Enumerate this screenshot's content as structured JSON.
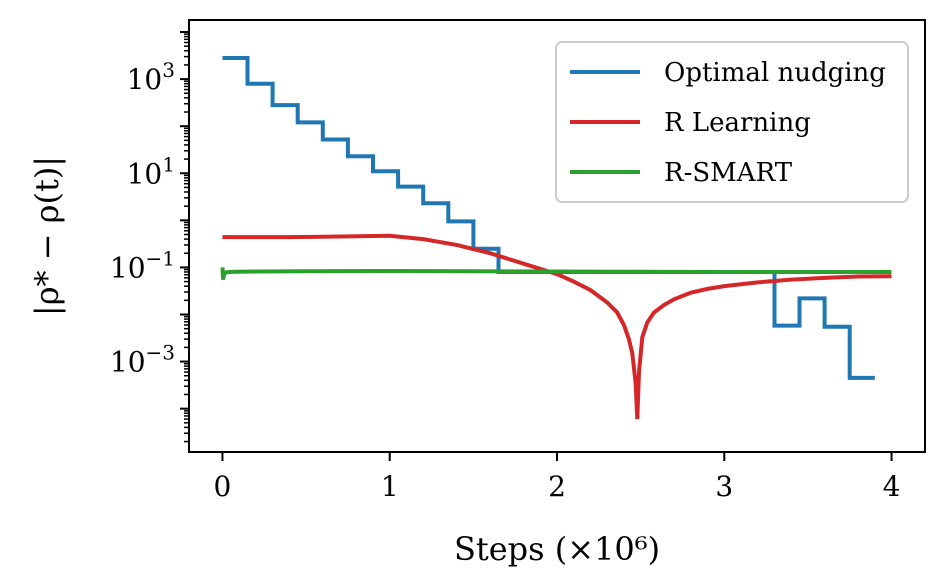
{
  "chart_data": {
    "type": "line",
    "title": "",
    "xlabel": "Steps (×10⁶)",
    "ylabel": "|ρ* − ρ(t)|",
    "xlim": [
      -0.2,
      4.2
    ],
    "ylim": [
      1.2e-05,
      18000
    ],
    "yscale": "log",
    "grid": false,
    "legend_position": "top-right",
    "x_ticks": [
      {
        "value": 0,
        "label": "0"
      },
      {
        "value": 1,
        "label": "1"
      },
      {
        "value": 2,
        "label": "2"
      },
      {
        "value": 3,
        "label": "3"
      },
      {
        "value": 4,
        "label": "4"
      }
    ],
    "y_ticks": [
      {
        "value": 1000,
        "base": "10",
        "exp": "3"
      },
      {
        "value": 10,
        "base": "10",
        "exp": "1"
      },
      {
        "value": 0.1,
        "base": "10",
        "exp": "−1"
      },
      {
        "value": 0.001,
        "base": "10",
        "exp": "−3"
      }
    ],
    "series": [
      {
        "name": "Optimal nudging",
        "color": "#1f77b4",
        "style": "step",
        "x": [
          0,
          0.15,
          0.15,
          0.3,
          0.3,
          0.45,
          0.45,
          0.6,
          0.6,
          0.75,
          0.75,
          0.9,
          0.9,
          1.05,
          1.05,
          1.2,
          1.2,
          1.35,
          1.35,
          1.5,
          1.5,
          1.65,
          1.65,
          3.3,
          3.3,
          3.45,
          3.45,
          3.6,
          3.6,
          3.75,
          3.75,
          3.9
        ],
        "y": [
          2800,
          2800,
          800,
          800,
          280,
          280,
          120,
          120,
          52,
          52,
          23,
          23,
          11,
          11,
          5.2,
          5.2,
          2.3,
          2.3,
          0.95,
          0.95,
          0.25,
          0.25,
          0.08,
          0.08,
          0.0058,
          0.0058,
          0.022,
          0.022,
          0.0055,
          0.0055,
          0.00045,
          0.00045
        ]
      },
      {
        "name": "R Learning",
        "color": "#d62728",
        "style": "line",
        "x": [
          0,
          0.2,
          0.4,
          0.6,
          0.8,
          1.0,
          1.2,
          1.4,
          1.6,
          1.8,
          2.0,
          2.1,
          2.2,
          2.3,
          2.36,
          2.4,
          2.43,
          2.45,
          2.47,
          2.48,
          2.49,
          2.51,
          2.54,
          2.58,
          2.64,
          2.7,
          2.8,
          2.9,
          3.0,
          3.2,
          3.4,
          3.6,
          3.8,
          4.0
        ],
        "y": [
          0.44,
          0.44,
          0.44,
          0.45,
          0.46,
          0.47,
          0.4,
          0.3,
          0.2,
          0.12,
          0.072,
          0.05,
          0.033,
          0.018,
          0.011,
          0.006,
          0.003,
          0.0015,
          0.00035,
          6e-05,
          0.0006,
          0.0033,
          0.0068,
          0.011,
          0.016,
          0.021,
          0.029,
          0.035,
          0.04,
          0.048,
          0.055,
          0.06,
          0.064,
          0.065
        ]
      },
      {
        "name": "R-SMART",
        "color": "#2ca02c",
        "style": "line",
        "x": [
          0,
          0.004,
          0.01,
          0.02,
          0.04,
          0.08,
          0.2,
          0.5,
          1.0,
          1.5,
          2.0,
          2.5,
          3.0,
          3.5,
          4.0
        ],
        "y": [
          0.1,
          0.055,
          0.07,
          0.078,
          0.08,
          0.081,
          0.082,
          0.083,
          0.084,
          0.083,
          0.082,
          0.081,
          0.08,
          0.08,
          0.08
        ]
      }
    ]
  }
}
